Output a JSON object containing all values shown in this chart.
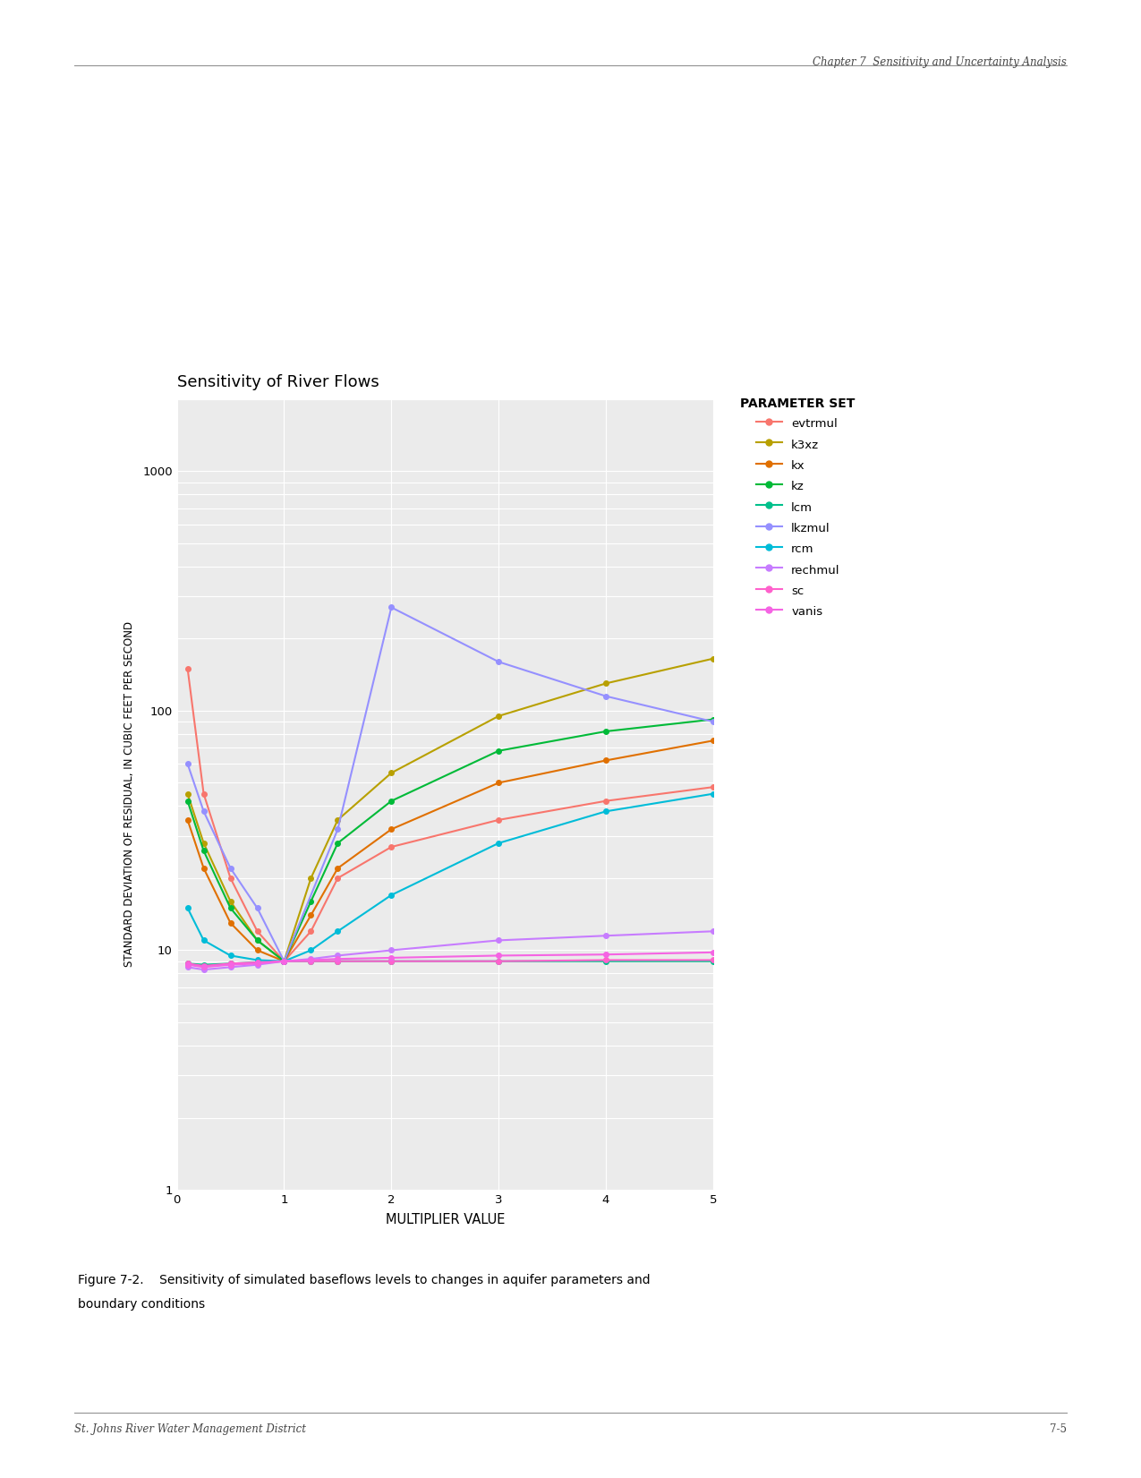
{
  "title": "Sensitivity of River Flows",
  "xlabel": "MULTIPLIER VALUE",
  "ylabel": "STANDARD DEVIATION OF RESIDUAL, IN CUBIC FEET PER SECOND",
  "xlim": [
    0,
    5
  ],
  "ylim_low": 1,
  "ylim_high": 2000,
  "x_ticks": [
    0,
    1,
    2,
    3,
    4,
    5
  ],
  "header_text": "Chapter 7  Sensitivity and Uncertainty Analysis",
  "footer_left": "St. Johns River Water Management District",
  "footer_right": "7-5",
  "caption_line1": "Figure 7-2.    Sensitivity of simulated baseflows levels to changes in aquifer parameters and",
  "caption_line2": "boundary conditions",
  "legend_title": "PARAMETER SET",
  "series": [
    {
      "name": "evtrmul",
      "color": "#F8766D",
      "x": [
        0.1,
        0.25,
        0.5,
        0.75,
        1.0,
        1.25,
        1.5,
        2.0,
        3.0,
        4.0,
        5.0
      ],
      "y": [
        150,
        45,
        20,
        12,
        9.0,
        12,
        20,
        27,
        35,
        42,
        48
      ]
    },
    {
      "name": "k3xz",
      "color": "#B8A000",
      "x": [
        0.1,
        0.25,
        0.5,
        0.75,
        1.0,
        1.25,
        1.5,
        2.0,
        3.0,
        4.0,
        5.0
      ],
      "y": [
        45,
        28,
        16,
        11,
        9.0,
        20,
        35,
        55,
        95,
        130,
        165
      ]
    },
    {
      "name": "kx",
      "color": "#E07000",
      "x": [
        0.1,
        0.25,
        0.5,
        0.75,
        1.0,
        1.25,
        1.5,
        2.0,
        3.0,
        4.0,
        5.0
      ],
      "y": [
        35,
        22,
        13,
        10,
        9.0,
        14,
        22,
        32,
        50,
        62,
        75
      ]
    },
    {
      "name": "kz",
      "color": "#00BA38",
      "x": [
        0.1,
        0.25,
        0.5,
        0.75,
        1.0,
        1.25,
        1.5,
        2.0,
        3.0,
        4.0,
        5.0
      ],
      "y": [
        42,
        26,
        15,
        11,
        9.0,
        16,
        28,
        42,
        68,
        82,
        92
      ]
    },
    {
      "name": "lcm",
      "color": "#00C08B",
      "x": [
        0.1,
        0.25,
        0.5,
        0.75,
        1.0,
        1.25,
        1.5,
        2.0,
        3.0,
        4.0,
        5.0
      ],
      "y": [
        8.8,
        8.7,
        8.8,
        8.9,
        9.0,
        9.0,
        9.0,
        9.0,
        9.0,
        9.0,
        9.0
      ]
    },
    {
      "name": "lkzmul",
      "color": "#9590FF",
      "x": [
        0.1,
        0.25,
        0.5,
        0.75,
        1.0,
        1.5,
        2.0,
        3.0,
        4.0,
        5.0
      ],
      "y": [
        60,
        38,
        22,
        15,
        9.0,
        32,
        270,
        160,
        115,
        90
      ]
    },
    {
      "name": "rcm",
      "color": "#00BCD8",
      "x": [
        0.1,
        0.25,
        0.5,
        0.75,
        1.0,
        1.25,
        1.5,
        2.0,
        3.0,
        4.0,
        5.0
      ],
      "y": [
        15,
        11,
        9.5,
        9.1,
        9.0,
        10,
        12,
        17,
        28,
        38,
        45
      ]
    },
    {
      "name": "rechmul",
      "color": "#C77CFF",
      "x": [
        0.1,
        0.25,
        0.5,
        0.75,
        1.0,
        1.25,
        1.5,
        2.0,
        3.0,
        4.0,
        5.0
      ],
      "y": [
        8.5,
        8.3,
        8.5,
        8.7,
        9.0,
        9.2,
        9.5,
        10.0,
        11.0,
        11.5,
        12.0
      ]
    },
    {
      "name": "sc",
      "color": "#FF61CC",
      "x": [
        0.1,
        0.25,
        0.5,
        0.75,
        1.0,
        1.25,
        1.5,
        2.0,
        3.0,
        4.0,
        5.0
      ],
      "y": [
        8.8,
        8.6,
        8.8,
        8.9,
        9.0,
        9.0,
        9.0,
        9.0,
        9.0,
        9.1,
        9.1
      ]
    },
    {
      "name": "vanis",
      "color": "#F564E3",
      "x": [
        0.1,
        0.25,
        0.5,
        0.75,
        1.0,
        1.25,
        1.5,
        2.0,
        3.0,
        4.0,
        5.0
      ],
      "y": [
        8.7,
        8.5,
        8.7,
        8.8,
        9.0,
        9.1,
        9.2,
        9.3,
        9.5,
        9.6,
        9.8
      ]
    }
  ],
  "bg_color": "#EBEBEB",
  "grid_color": "#FFFFFF"
}
